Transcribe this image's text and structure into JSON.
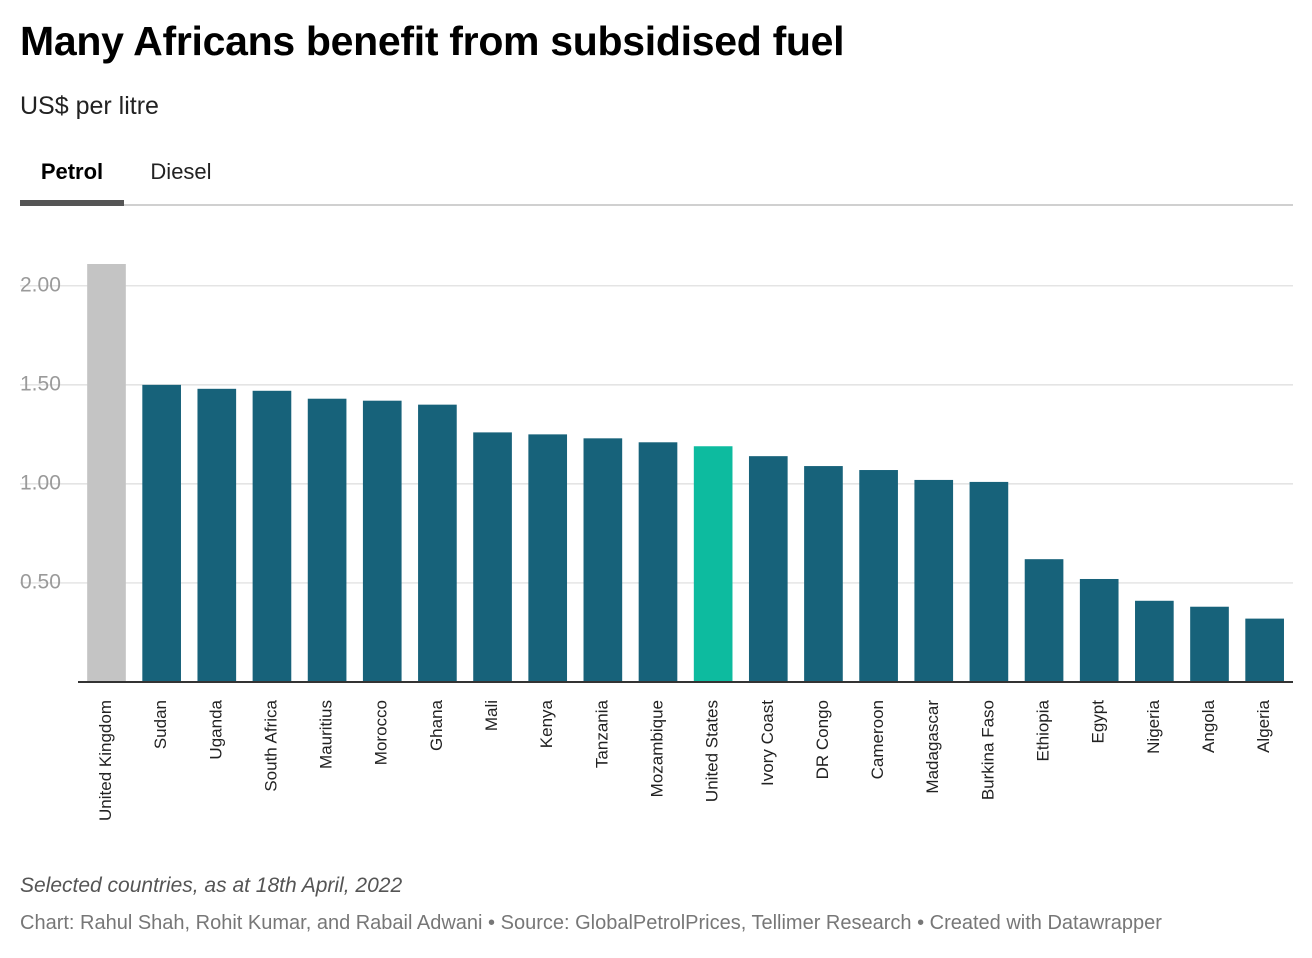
{
  "title": "Many Africans benefit from subsidised fuel",
  "subtitle": "US$ per litre",
  "tabs": [
    {
      "label": "Petrol",
      "active": true
    },
    {
      "label": "Diesel",
      "active": false
    }
  ],
  "colors": {
    "bar": "#17627a",
    "highlight_uk": "#c4c4c4",
    "highlight_us": "#0dbb9f",
    "grid": "#dcdcdc",
    "tick_text": "#9a9a9a"
  },
  "chart_data": {
    "type": "bar",
    "categories": [
      "United Kingdom",
      "Sudan",
      "Uganda",
      "South Africa",
      "Mauritius",
      "Morocco",
      "Ghana",
      "Mali",
      "Kenya",
      "Tanzania",
      "Mozambique",
      "United States",
      "Ivory Coast",
      "DR Congo",
      "Cameroon",
      "Madagascar",
      "Burkina Faso",
      "Ethiopia",
      "Egypt",
      "Nigeria",
      "Angola",
      "Algeria"
    ],
    "values": [
      2.11,
      1.5,
      1.48,
      1.47,
      1.43,
      1.42,
      1.4,
      1.26,
      1.25,
      1.23,
      1.21,
      1.19,
      1.14,
      1.09,
      1.07,
      1.02,
      1.01,
      0.62,
      0.52,
      0.41,
      0.38,
      0.32
    ],
    "highlighted": {
      "United Kingdom": "#c4c4c4",
      "United States": "#0dbb9f"
    },
    "yticks": [
      "0.50",
      "1.00",
      "1.50",
      "2.00"
    ],
    "ylim": [
      0,
      2.11
    ],
    "grid": true,
    "xlabel": "",
    "ylabel": ""
  },
  "footer": {
    "note": "Selected countries, as at 18th April, 2022",
    "credits": "Chart: Rahul Shah, Rohit Kumar, and Rabail Adwani • Source: GlobalPetrolPrices, Tellimer Research • Created with Datawrapper"
  }
}
